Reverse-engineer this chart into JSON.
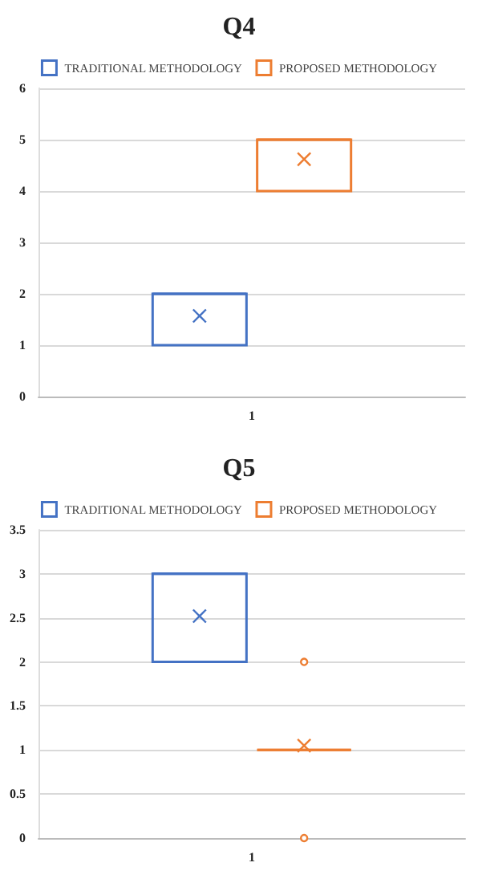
{
  "chart_data": [
    {
      "type": "box",
      "title": "Q4",
      "categories": [
        "1"
      ],
      "ylim": [
        0,
        6
      ],
      "yticks": [
        0,
        1,
        2,
        3,
        4,
        5,
        6
      ],
      "grid": "y",
      "legend": "top",
      "series": [
        {
          "name": "TRADITIONAL METHODOLOGY",
          "color": "#4472c4",
          "boxes": [
            {
              "low": 1,
              "q1": 1,
              "median": 2,
              "q3": 2,
              "high": 2,
              "mean": 1.57
            }
          ]
        },
        {
          "name": "PROPOSED METHODOLOGY",
          "color": "#ed7d31",
          "boxes": [
            {
              "low": 4,
              "q1": 4,
              "median": 5,
              "q3": 5,
              "high": 5,
              "mean": 4.62
            }
          ]
        }
      ]
    },
    {
      "type": "box",
      "title": "Q5",
      "categories": [
        "1"
      ],
      "ylim": [
        0,
        3.5
      ],
      "yticks": [
        0,
        0.5,
        1,
        1.5,
        2,
        2.5,
        3,
        3.5
      ],
      "grid": "y",
      "legend": "top",
      "series": [
        {
          "name": "TRADITIONAL METHODOLOGY",
          "color": "#4472c4",
          "boxes": [
            {
              "low": 2,
              "q1": 2,
              "median": 3,
              "q3": 3,
              "high": 3,
              "mean": 2.52
            }
          ]
        },
        {
          "name": "PROPOSED METHODOLOGY",
          "color": "#ed7d31",
          "boxes": [
            {
              "low": 1,
              "q1": 1,
              "median": 1,
              "q3": 1,
              "high": 1,
              "mean": 1.05,
              "outliers": [
                2,
                0
              ]
            }
          ]
        }
      ]
    }
  ]
}
